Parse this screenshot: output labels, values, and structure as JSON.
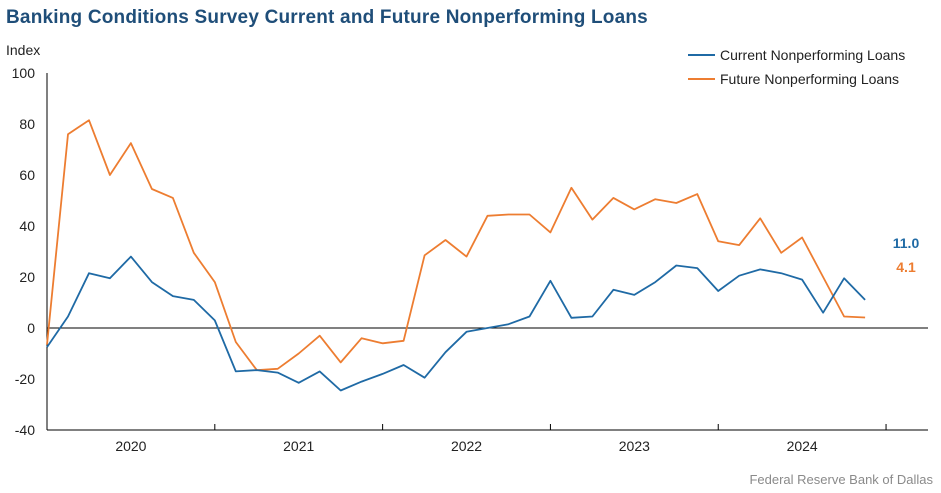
{
  "title": "Banking Conditions Survey Current and Future Nonperforming Loans",
  "source": "Federal Reserve Bank of Dallas",
  "chart_data": {
    "type": "line",
    "title": "Banking Conditions Survey Current and Future Nonperforming Loans",
    "ylabel": "Index",
    "xlabel": "",
    "ylim": [
      -40,
      100
    ],
    "yticks": [
      -40,
      -20,
      0,
      20,
      40,
      60,
      80,
      100
    ],
    "xlim": [
      2019.5,
      2024.75
    ],
    "year_labels": [
      "2020",
      "2021",
      "2022",
      "2023",
      "2024"
    ],
    "year_label_positions": [
      2020,
      2021,
      2022,
      2023,
      2024
    ],
    "year_ticks": [
      2019.5,
      2020.5,
      2021.5,
      2022.5,
      2023.5,
      2024.5
    ],
    "legend_position": "top-right",
    "x": [
      2019.5,
      2019.625,
      2019.75,
      2019.875,
      2020.0,
      2020.125,
      2020.25,
      2020.375,
      2020.5,
      2020.625,
      2020.75,
      2020.875,
      2021.0,
      2021.125,
      2021.25,
      2021.375,
      2021.5,
      2021.625,
      2021.75,
      2021.875,
      2022.0,
      2022.125,
      2022.25,
      2022.375,
      2022.5,
      2022.625,
      2022.75,
      2022.875,
      2023.0,
      2023.125,
      2023.25,
      2023.375,
      2023.5,
      2023.625,
      2023.75,
      2023.875,
      2024.0,
      2024.125,
      2024.25,
      2024.375
    ],
    "series": [
      {
        "name": "Current Nonperforming Loans",
        "color": "#1f6aa5",
        "values": [
          -7.5,
          4.5,
          21.5,
          19.5,
          28.0,
          18.0,
          12.5,
          11.0,
          3.0,
          -17.0,
          -16.5,
          -17.5,
          -21.5,
          -17.0,
          -24.5,
          -21.0,
          -18.0,
          -14.5,
          -19.5,
          -9.5,
          -1.5,
          0.0,
          1.5,
          4.5,
          18.5,
          4.0,
          4.5,
          15.0,
          13.0,
          18.0,
          24.5,
          23.5,
          14.5,
          20.5,
          23.0,
          21.5,
          19.0,
          6.0,
          19.5,
          11.0
        ],
        "end_label": "11.0"
      },
      {
        "name": "Future Nonperforming Loans",
        "color": "#ed7d31",
        "values": [
          -6.5,
          76.0,
          81.5,
          60.0,
          72.5,
          54.5,
          51.0,
          29.5,
          18.0,
          -5.5,
          -16.5,
          -16.0,
          -10.0,
          -3.0,
          -13.5,
          -4.0,
          -6.0,
          -5.0,
          28.5,
          34.5,
          28.0,
          44.0,
          44.5,
          44.5,
          37.5,
          55.0,
          42.5,
          51.0,
          46.5,
          50.5,
          49.0,
          52.5,
          34.0,
          32.5,
          43.0,
          29.5,
          35.5,
          20.0,
          4.5,
          4.1
        ],
        "end_label": "4.1"
      }
    ]
  }
}
